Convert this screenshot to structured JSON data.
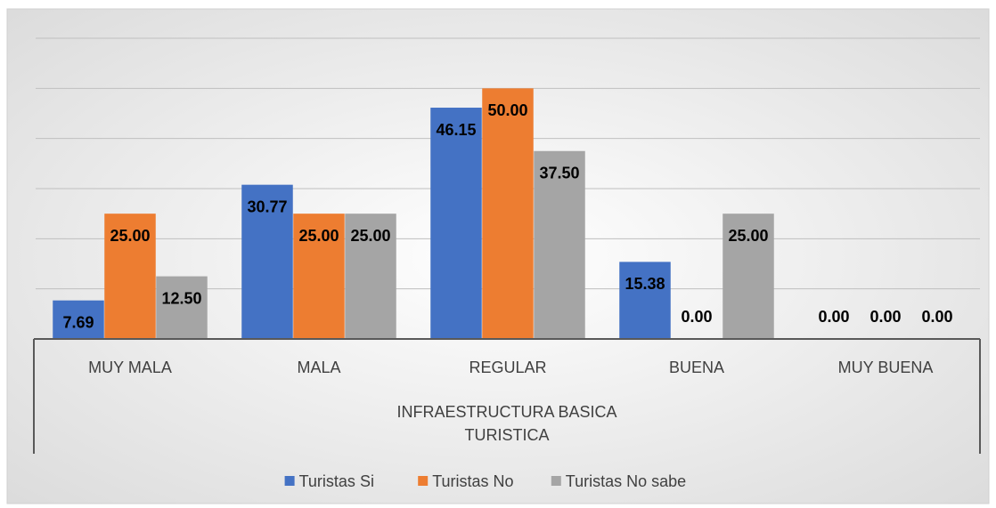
{
  "chart_data": {
    "type": "bar",
    "categories": [
      "MUY MALA",
      "MALA",
      "REGULAR",
      "BUENA",
      "MUY BUENA"
    ],
    "x_label": "INFRAESTRUCTURA BASICA TURISTICA",
    "series": [
      {
        "name": "Turistas Si",
        "color": "#4472c4",
        "values": [
          7.69,
          30.77,
          46.15,
          15.38,
          0
        ],
        "value_labels": [
          "7.69",
          "30.77",
          "46.15",
          "15.38",
          "0.00"
        ]
      },
      {
        "name": "Turistas No",
        "color": "#ed7d31",
        "values": [
          25,
          25,
          50,
          0,
          0
        ],
        "value_labels": [
          "25.00",
          "25.00",
          "50.00",
          "0.00",
          "0.00"
        ]
      },
      {
        "name": "Turistas No sabe",
        "color": "#a5a5a5",
        "values": [
          12.5,
          25,
          37.5,
          25,
          0
        ],
        "value_labels": [
          "12.50",
          "25.00",
          "37.50",
          "25.00",
          "0.00"
        ]
      }
    ],
    "ylim": [
      0,
      60
    ],
    "yticks": [
      0,
      10,
      20,
      30,
      40,
      50,
      60
    ],
    "grid": true,
    "legend": "bottom"
  }
}
